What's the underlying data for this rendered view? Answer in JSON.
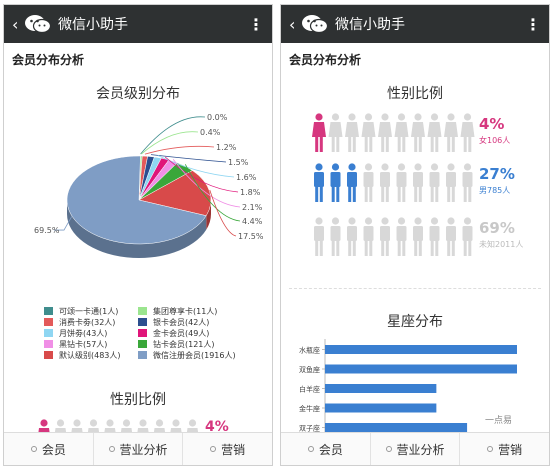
{
  "app": {
    "title": "微信小助手",
    "section_title": "会员分布分析"
  },
  "left": {
    "chart_title": "会员级别分布",
    "chart2_title": "性别比例",
    "partial_pct": "4%"
  },
  "right": {
    "gender_title": "性别比例",
    "zodiac_title": "星座分布"
  },
  "tabs": [
    "会员",
    "营业分析",
    "营销"
  ],
  "chart_data": [
    {
      "type": "pie",
      "title": "会员级别分布",
      "categories": [
        "可颂一卡通(1人)",
        "集团尊享卡(11人)",
        "消费卡劵(32人)",
        "银卡会员(42人)",
        "月饼劵(43人)",
        "金卡会员(49人)",
        "黑钻卡(57人)",
        "钻卡会员(121人)",
        "默认级别(483人)",
        "微信注册会员(1916人)"
      ],
      "values": [
        0.0,
        0.4,
        1.2,
        1.5,
        1.6,
        1.8,
        2.1,
        4.4,
        17.5,
        69.5
      ],
      "labels": [
        "0.0%",
        "0.4%",
        "1.2%",
        "1.5%",
        "1.6%",
        "1.8%",
        "2.1%",
        "4.4%",
        "17.5%",
        "69.5%"
      ],
      "colors": [
        "#3f8d8d",
        "#9be58f",
        "#e35a5a",
        "#2c4f8f",
        "#8fd6f2",
        "#e0157a",
        "#f08fe6",
        "#3aa73a",
        "#d84a4a",
        "#7f9dc5"
      ]
    },
    {
      "type": "bar",
      "title": "性别比例",
      "categories": [
        "女",
        "男",
        "未知"
      ],
      "values": [
        4,
        27,
        69
      ],
      "pct_labels": [
        "4%",
        "27%",
        "69%"
      ],
      "sub_labels": [
        "女106人",
        "男785人",
        "未知2011人"
      ],
      "colors": [
        "#d6377f",
        "#3a7fd1",
        "#c8c8c8"
      ]
    },
    {
      "type": "bar",
      "orientation": "horizontal",
      "title": "星座分布",
      "categories": [
        "水瓶座",
        "双鱼座",
        "白羊座",
        "金牛座",
        "双子座"
      ],
      "values": [
        100,
        100,
        58,
        58,
        74
      ],
      "color": "#3a7fd1"
    }
  ],
  "watermark": "一点易"
}
